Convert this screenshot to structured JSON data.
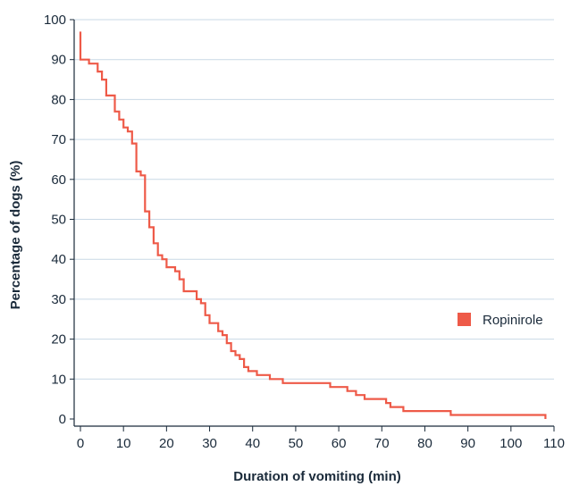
{
  "chart_data": {
    "type": "line",
    "step": true,
    "title": "",
    "xlabel": "Duration of vomiting (min)",
    "ylabel": "Percentage of dogs (%)",
    "xlim": [
      0,
      110
    ],
    "ylim": [
      0,
      100
    ],
    "xticks": [
      "0",
      "10",
      "20",
      "30",
      "40",
      "50",
      "60",
      "70",
      "80",
      "90",
      "100",
      "110"
    ],
    "yticks": [
      "0",
      "10",
      "20",
      "30",
      "40",
      "50",
      "60",
      "70",
      "80",
      "90",
      "100"
    ],
    "grid": "horizontal",
    "legend_position": "right",
    "series": [
      {
        "name": "Ropinirole",
        "color": "#ee5a48",
        "points": [
          [
            0,
            97
          ],
          [
            0,
            90
          ],
          [
            2,
            90
          ],
          [
            2,
            89
          ],
          [
            4,
            89
          ],
          [
            4,
            87
          ],
          [
            5,
            87
          ],
          [
            5,
            85
          ],
          [
            6,
            85
          ],
          [
            6,
            81
          ],
          [
            8,
            81
          ],
          [
            8,
            77
          ],
          [
            9,
            77
          ],
          [
            9,
            75
          ],
          [
            10,
            75
          ],
          [
            10,
            73
          ],
          [
            11,
            73
          ],
          [
            11,
            72
          ],
          [
            12,
            72
          ],
          [
            12,
            69
          ],
          [
            13,
            69
          ],
          [
            13,
            62
          ],
          [
            14,
            62
          ],
          [
            14,
            61
          ],
          [
            15,
            61
          ],
          [
            15,
            52
          ],
          [
            16,
            52
          ],
          [
            16,
            48
          ],
          [
            17,
            48
          ],
          [
            17,
            44
          ],
          [
            18,
            44
          ],
          [
            18,
            41
          ],
          [
            19,
            41
          ],
          [
            19,
            40
          ],
          [
            20,
            40
          ],
          [
            20,
            38
          ],
          [
            22,
            38
          ],
          [
            22,
            37
          ],
          [
            23,
            37
          ],
          [
            23,
            35
          ],
          [
            24,
            35
          ],
          [
            24,
            32
          ],
          [
            27,
            32
          ],
          [
            27,
            30
          ],
          [
            28,
            30
          ],
          [
            28,
            29
          ],
          [
            29,
            29
          ],
          [
            29,
            26
          ],
          [
            30,
            26
          ],
          [
            30,
            24
          ],
          [
            32,
            24
          ],
          [
            32,
            22
          ],
          [
            33,
            22
          ],
          [
            33,
            21
          ],
          [
            34,
            21
          ],
          [
            34,
            19
          ],
          [
            35,
            19
          ],
          [
            35,
            17
          ],
          [
            36,
            17
          ],
          [
            36,
            16
          ],
          [
            37,
            16
          ],
          [
            37,
            15
          ],
          [
            38,
            15
          ],
          [
            38,
            13
          ],
          [
            39,
            13
          ],
          [
            39,
            12
          ],
          [
            41,
            12
          ],
          [
            41,
            11
          ],
          [
            44,
            11
          ],
          [
            44,
            10
          ],
          [
            47,
            10
          ],
          [
            47,
            9
          ],
          [
            58,
            9
          ],
          [
            58,
            8
          ],
          [
            62,
            8
          ],
          [
            62,
            7
          ],
          [
            64,
            7
          ],
          [
            64,
            6
          ],
          [
            66,
            6
          ],
          [
            66,
            5
          ],
          [
            71,
            5
          ],
          [
            71,
            4
          ],
          [
            72,
            4
          ],
          [
            72,
            3
          ],
          [
            75,
            3
          ],
          [
            75,
            2
          ],
          [
            86,
            2
          ],
          [
            86,
            1
          ],
          [
            108,
            1
          ],
          [
            108,
            0
          ]
        ]
      }
    ]
  }
}
